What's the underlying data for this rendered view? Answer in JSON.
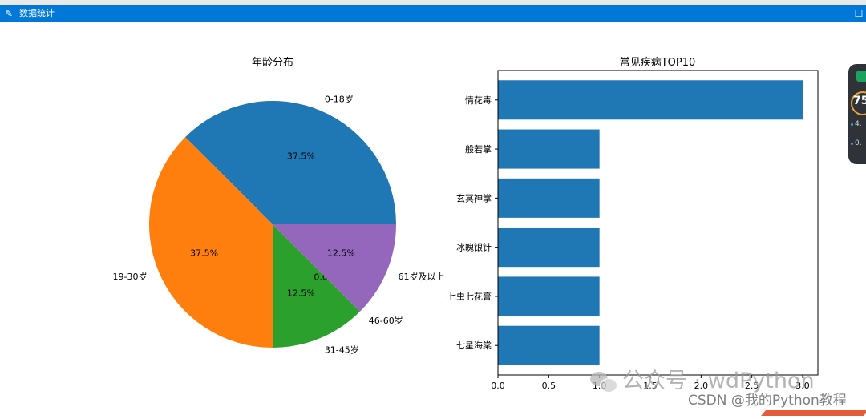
{
  "window": {
    "title": "数据统计",
    "icon": "feather-icon",
    "minimize_glyph": "—",
    "maximize_glyph": "☐"
  },
  "chart_data": [
    {
      "type": "pie",
      "title": "年龄分布",
      "labels": [
        "0-18岁",
        "19-30岁",
        "31-45岁",
        "46-60岁",
        "61岁及以上"
      ],
      "values": [
        37.5,
        37.5,
        12.5,
        0.0,
        12.5
      ],
      "autopct": [
        "37.5%",
        "37.5%",
        "12.5%",
        "0.0%",
        "12.5%"
      ],
      "colors": [
        "#1f77b4",
        "#ff7f0e",
        "#2ca02c",
        "#d62728",
        "#9467bd"
      ]
    },
    {
      "type": "bar",
      "orientation": "horizontal",
      "title": "常见疾病TOP10",
      "categories": [
        "情花毒",
        "般若掌",
        "玄冥神掌",
        "冰魄银针",
        "七虫七花膏",
        "七星海棠"
      ],
      "values": [
        3,
        1,
        1,
        1,
        1,
        1
      ],
      "xlim": [
        0,
        3.15
      ],
      "xticks": [
        "0.0",
        "0.5",
        "1.0",
        "1.5",
        "2.0",
        "2.5",
        "3.0"
      ],
      "color": "#1f77b4"
    }
  ],
  "widget": {
    "gauge": "75",
    "stats": [
      "4.",
      "0."
    ]
  },
  "watermark": {
    "text": "公众号 · wdPython",
    "icon": "wechat-icon"
  },
  "credit": "CSDN @我的Python教程"
}
